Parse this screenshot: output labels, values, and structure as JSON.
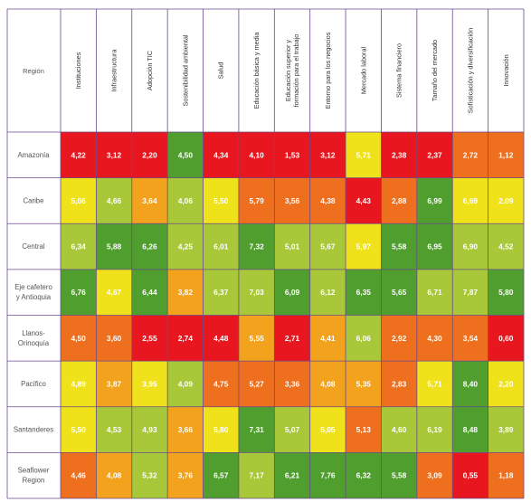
{
  "chart_data": {
    "type": "heatmap",
    "corner_label": "Región",
    "columns": [
      [
        "Instituciones"
      ],
      [
        "Infraestructura"
      ],
      [
        "Adopción TIC"
      ],
      [
        "Sostenibilidad ambiental"
      ],
      [
        "Salud"
      ],
      [
        "Educación básica y media"
      ],
      [
        "Educación superior y",
        "formación para el trabajo"
      ],
      [
        "Entorno para los negocios"
      ],
      [
        "Mercado laboral"
      ],
      [
        "Sistema financiero"
      ],
      [
        "Tamaño del mercado"
      ],
      [
        "Sofisticación y diversificación"
      ],
      [
        "Innovación"
      ]
    ],
    "rows": [
      {
        "label": [
          "Amazonía"
        ],
        "values": [
          "4,22",
          "3,12",
          "2,20",
          "4,50",
          "4,34",
          "4,10",
          "1,53",
          "3,12",
          "5,71",
          "2,38",
          "2,37",
          "2,72",
          "1,12"
        ]
      },
      {
        "label": [
          "Caribe"
        ],
        "values": [
          "5,06",
          "4,66",
          "3,64",
          "4,06",
          "5,50",
          "5,79",
          "3,56",
          "4,38",
          "4,43",
          "2,88",
          "6,99",
          "6,69",
          "2,09"
        ]
      },
      {
        "label": [
          "Central"
        ],
        "values": [
          "6,34",
          "5,88",
          "6,26",
          "4,25",
          "6,01",
          "7,32",
          "5,01",
          "5,67",
          "5,97",
          "5,58",
          "6,95",
          "6,90",
          "4,52"
        ]
      },
      {
        "label": [
          "Eje cafetero",
          "y Antioquia"
        ],
        "values": [
          "6,76",
          "4,67",
          "6,44",
          "3,82",
          "6,37",
          "7,03",
          "6,09",
          "6,12",
          "6,35",
          "5,65",
          "6,71",
          "7,87",
          "5,80"
        ]
      },
      {
        "label": [
          "Llanos-",
          "Orinoquía"
        ],
        "values": [
          "4,50",
          "3,60",
          "2,55",
          "2,74",
          "4,48",
          "5,55",
          "2,71",
          "4,41",
          "6,06",
          "2,92",
          "4,30",
          "3,54",
          "0,60"
        ]
      },
      {
        "label": [
          "Pacífico"
        ],
        "values": [
          "4,89",
          "3,87",
          "3,95",
          "4,09",
          "4,75",
          "5,27",
          "3,36",
          "4,08",
          "5,35",
          "2,83",
          "5,71",
          "8,40",
          "2,20"
        ]
      },
      {
        "label": [
          "Santanderes"
        ],
        "values": [
          "5,50",
          "4,53",
          "4,93",
          "3,66",
          "5,80",
          "7,31",
          "5,07",
          "5,05",
          "5,13",
          "4,60",
          "6,19",
          "8,48",
          "3,89"
        ]
      },
      {
        "label": [
          "Seaflower",
          "Region"
        ],
        "values": [
          "4,46",
          "4,08",
          "5,32",
          "3,76",
          "6,57",
          "7,17",
          "6,21",
          "7,76",
          "6,32",
          "5,58",
          "3,09",
          "0,55",
          "1,18"
        ]
      }
    ],
    "cell_colors": [
      [
        "#e8171f",
        "#e8171f",
        "#e8171f",
        "#4f9e2e",
        "#e8171f",
        "#e8171f",
        "#e8171f",
        "#e8171f",
        "#f0e21a",
        "#e8171f",
        "#e8171f",
        "#ee6f1e",
        "#ee6f1e"
      ],
      [
        "#f0e21a",
        "#a8c83a",
        "#f2a21c",
        "#a8c83a",
        "#f0e21a",
        "#ee6f1e",
        "#ee6f1e",
        "#ee6f1e",
        "#e8171f",
        "#ee6f1e",
        "#4f9e2e",
        "#f0e21a",
        "#f0e21a"
      ],
      [
        "#a8c83a",
        "#4f9e2e",
        "#4f9e2e",
        "#a8c83a",
        "#a8c83a",
        "#4f9e2e",
        "#a8c83a",
        "#a8c83a",
        "#f0e21a",
        "#4f9e2e",
        "#4f9e2e",
        "#a8c83a",
        "#a8c83a"
      ],
      [
        "#4f9e2e",
        "#f0e21a",
        "#4f9e2e",
        "#f2a21c",
        "#a8c83a",
        "#a8c83a",
        "#4f9e2e",
        "#a8c83a",
        "#4f9e2e",
        "#4f9e2e",
        "#a8c83a",
        "#a8c83a",
        "#4f9e2e"
      ],
      [
        "#ee6f1e",
        "#ee6f1e",
        "#e8171f",
        "#e8171f",
        "#e8171f",
        "#f2a21c",
        "#e8171f",
        "#f2a21c",
        "#a8c83a",
        "#ee6f1e",
        "#ee6f1e",
        "#ee6f1e",
        "#e8171f"
      ],
      [
        "#f0e21a",
        "#f2a21c",
        "#f0e21a",
        "#a8c83a",
        "#ee6f1e",
        "#ee6f1e",
        "#ee6f1e",
        "#f2a21c",
        "#f2a21c",
        "#ee6f1e",
        "#f0e21a",
        "#4f9e2e",
        "#f0e21a"
      ],
      [
        "#f0e21a",
        "#a8c83a",
        "#a8c83a",
        "#f2a21c",
        "#f0e21a",
        "#4f9e2e",
        "#a8c83a",
        "#f0e21a",
        "#ee6f1e",
        "#a8c83a",
        "#a8c83a",
        "#4f9e2e",
        "#a8c83a"
      ],
      [
        "#ee6f1e",
        "#f2a21c",
        "#a8c83a",
        "#f2a21c",
        "#4f9e2e",
        "#a8c83a",
        "#4f9e2e",
        "#4f9e2e",
        "#4f9e2e",
        "#4f9e2e",
        "#ee6f1e",
        "#e8171f",
        "#ee6f1e"
      ]
    ],
    "grid_color": "#6a4a8c",
    "corner_text_color": "#555555",
    "header_text_color": "#333333",
    "row_text_color": "#555555",
    "value_text_color": "#ffffff"
  }
}
